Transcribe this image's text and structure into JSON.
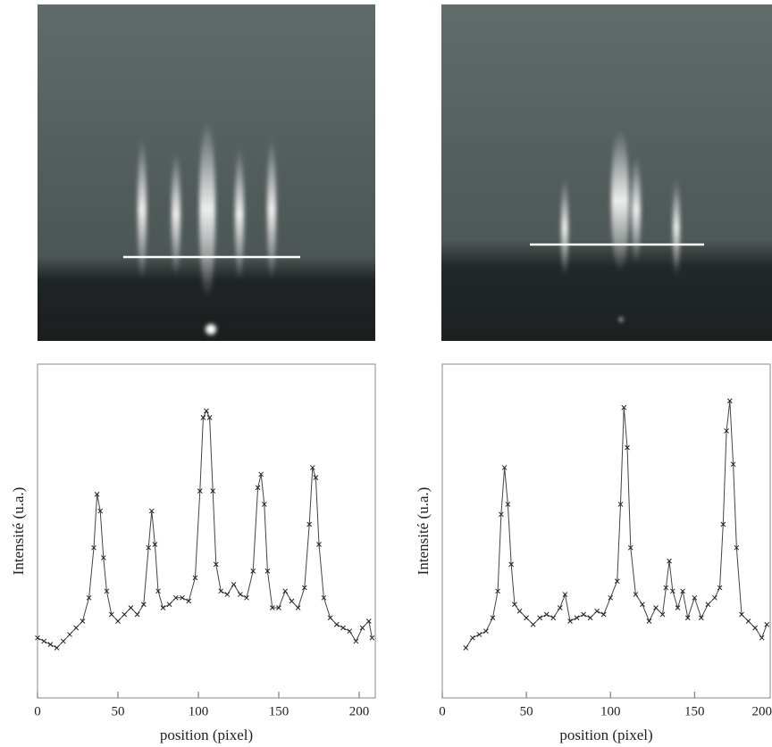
{
  "chart_data": [
    {
      "type": "line",
      "x_label": "position (pixel)",
      "y_label": "Intensité (u.a.)",
      "color": "#444",
      "xlim": [
        0,
        210
      ],
      "ylim": [
        0,
        1
      ],
      "xticks": [
        0,
        50,
        100,
        150,
        200
      ],
      "x": [
        0,
        4,
        8,
        12,
        16,
        20,
        24,
        28,
        32,
        35,
        37,
        39,
        41,
        43,
        46,
        50,
        54,
        58,
        62,
        66,
        69,
        71,
        73,
        75,
        78,
        82,
        86,
        90,
        94,
        98,
        101,
        103,
        105,
        107,
        109,
        111,
        114,
        118,
        122,
        126,
        130,
        134,
        137,
        139,
        141,
        143,
        146,
        150,
        154,
        158,
        162,
        166,
        169,
        171,
        173,
        175,
        178,
        182,
        186,
        190,
        194,
        198,
        202,
        206,
        208
      ],
      "values": [
        0.18,
        0.17,
        0.16,
        0.15,
        0.17,
        0.19,
        0.21,
        0.23,
        0.3,
        0.45,
        0.61,
        0.56,
        0.42,
        0.32,
        0.25,
        0.23,
        0.25,
        0.27,
        0.25,
        0.28,
        0.45,
        0.56,
        0.46,
        0.32,
        0.27,
        0.28,
        0.3,
        0.3,
        0.29,
        0.36,
        0.62,
        0.84,
        0.86,
        0.84,
        0.62,
        0.4,
        0.32,
        0.31,
        0.34,
        0.31,
        0.3,
        0.38,
        0.63,
        0.67,
        0.58,
        0.38,
        0.27,
        0.27,
        0.32,
        0.29,
        0.27,
        0.33,
        0.52,
        0.69,
        0.66,
        0.46,
        0.3,
        0.24,
        0.22,
        0.21,
        0.2,
        0.17,
        0.21,
        0.23,
        0.18
      ]
    },
    {
      "type": "line",
      "x_label": "position (pixel)",
      "y_label": "Intensité (u.a.)",
      "color": "#444",
      "xlim": [
        0,
        195
      ],
      "ylim": [
        0,
        1
      ],
      "xticks": [
        0,
        50,
        100,
        150,
        200
      ],
      "x": [
        14,
        18,
        22,
        26,
        30,
        33,
        35,
        37,
        39,
        41,
        43,
        46,
        50,
        54,
        58,
        62,
        66,
        70,
        73,
        76,
        80,
        84,
        88,
        92,
        96,
        100,
        104,
        106,
        108,
        110,
        112,
        115,
        119,
        123,
        127,
        131,
        133,
        135,
        137,
        140,
        143,
        146,
        150,
        154,
        158,
        162,
        165,
        167,
        169,
        171,
        173,
        175,
        178,
        182,
        186,
        190,
        193
      ],
      "values": [
        0.15,
        0.18,
        0.19,
        0.2,
        0.24,
        0.32,
        0.55,
        0.69,
        0.58,
        0.4,
        0.28,
        0.26,
        0.24,
        0.22,
        0.24,
        0.25,
        0.24,
        0.27,
        0.31,
        0.23,
        0.24,
        0.25,
        0.24,
        0.26,
        0.25,
        0.3,
        0.35,
        0.58,
        0.87,
        0.75,
        0.45,
        0.31,
        0.28,
        0.23,
        0.27,
        0.25,
        0.33,
        0.41,
        0.32,
        0.27,
        0.32,
        0.24,
        0.3,
        0.24,
        0.28,
        0.3,
        0.33,
        0.52,
        0.8,
        0.89,
        0.7,
        0.45,
        0.25,
        0.23,
        0.21,
        0.18,
        0.22
      ]
    }
  ]
}
